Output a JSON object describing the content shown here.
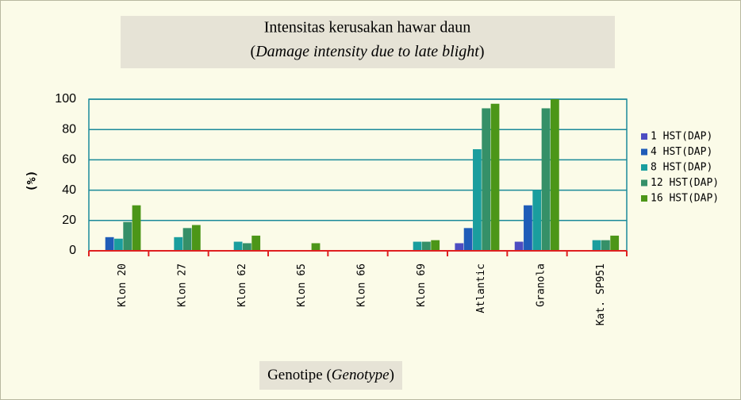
{
  "chart_data": {
    "type": "bar",
    "title": "Intensitas kerusakan hawar daun",
    "subtitle": [
      "(",
      "Damage intensity due to late blight",
      ")"
    ],
    "x_label": [
      "Genotipe (",
      "Genotype",
      ")"
    ],
    "y_label": "(%)",
    "categories": [
      "Klon 20",
      "Klon 27",
      "Klon 62",
      "Klon 65",
      "Klon 66",
      "Klon 69",
      "Atlantic",
      "Granola",
      "Kat. SP951"
    ],
    "series": [
      {
        "name": "1 HST(DAP)",
        "color": "#4d4dc2",
        "values": [
          0,
          0,
          0,
          0,
          0,
          0,
          5,
          6,
          0
        ]
      },
      {
        "name": "4 HST(DAP)",
        "color": "#1f5cb8",
        "values": [
          9,
          0,
          0,
          0,
          0,
          0,
          15,
          30,
          0
        ]
      },
      {
        "name": "8 HST(DAP)",
        "color": "#1a9e9e",
        "values": [
          8,
          9,
          6,
          0,
          0,
          6,
          67,
          40,
          7
        ]
      },
      {
        "name": "12 HST(DAP)",
        "color": "#359068",
        "values": [
          19,
          15,
          5,
          0,
          0,
          6,
          94,
          94,
          7
        ]
      },
      {
        "name": "16 HST(DAP)",
        "color": "#4c9618",
        "values": [
          30,
          17,
          10,
          5,
          0,
          7,
          97,
          100,
          10
        ]
      }
    ],
    "ylim": [
      0,
      100
    ],
    "yticks": [
      0,
      20,
      40,
      60,
      80,
      100
    ],
    "grid": true,
    "legend": "right"
  }
}
